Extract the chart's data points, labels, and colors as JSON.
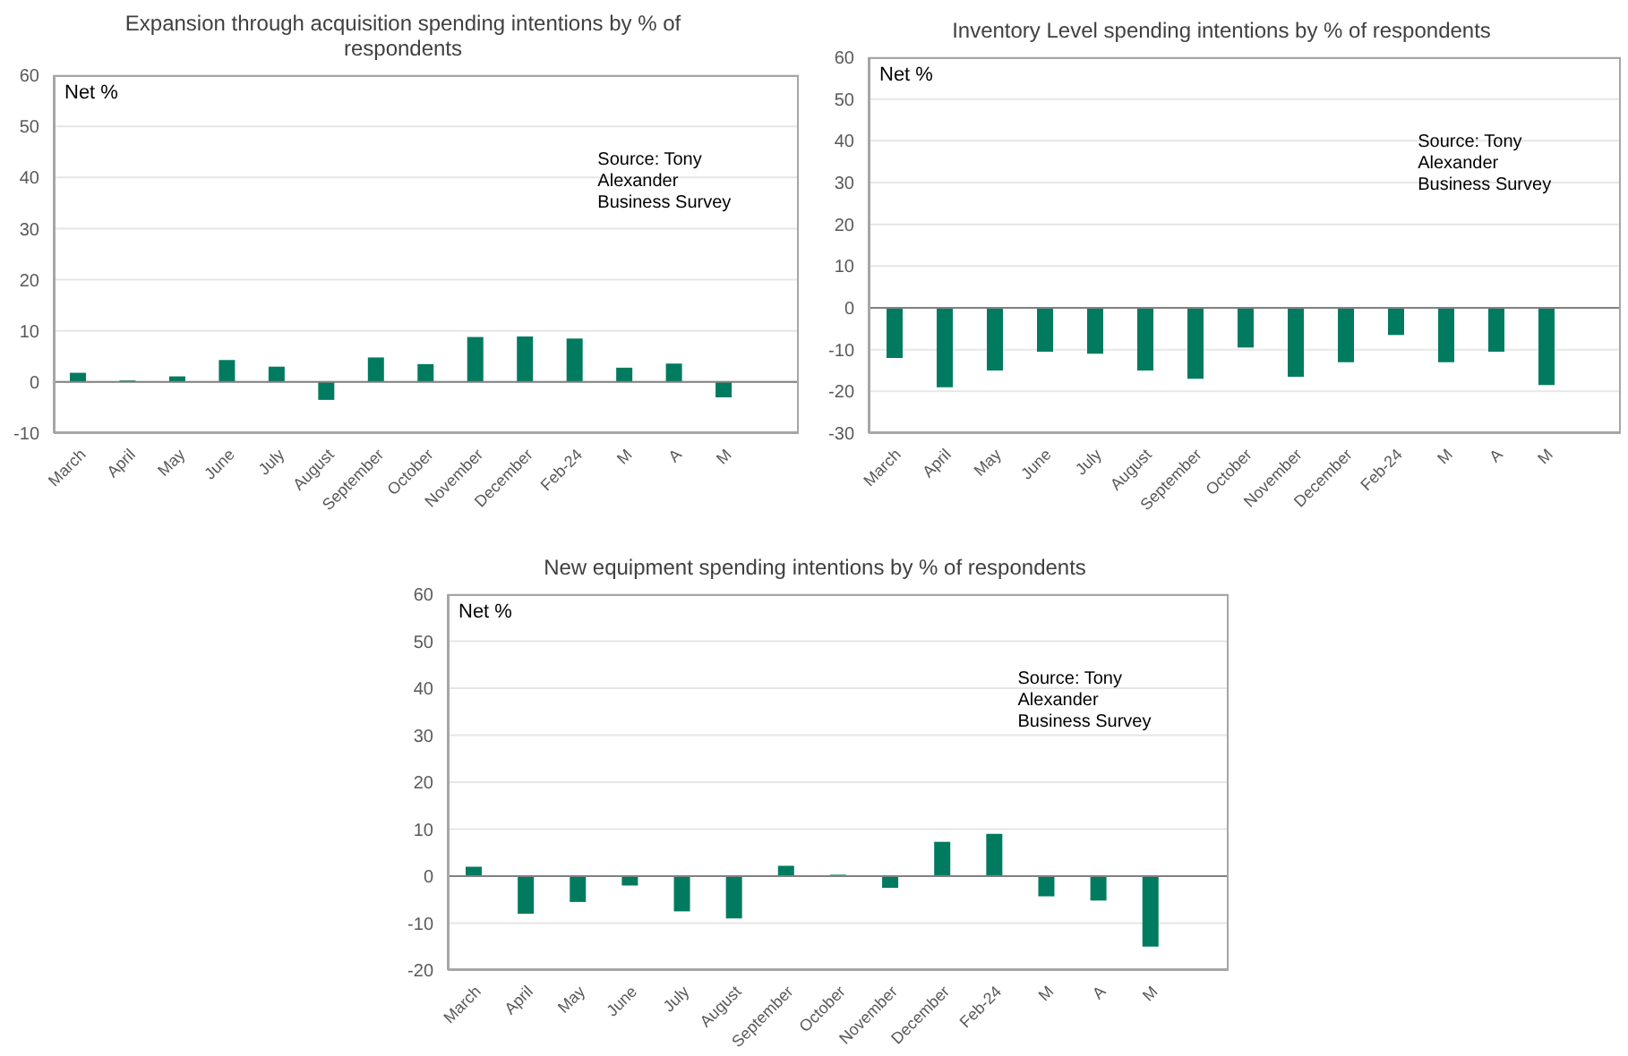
{
  "chart_data": [
    {
      "type": "bar",
      "title": "Expansion through acquisition spending intentions by % of respondents",
      "ylabel": "Net %",
      "annotations": [
        "Source: Tony Alexander Business Survey"
      ],
      "categories": [
        "March",
        "April",
        "May",
        "June",
        "July",
        "August",
        "September",
        "October",
        "November",
        "December",
        "Feb-24",
        "M",
        "A",
        "M",
        null
      ],
      "values": [
        1.8,
        0.3,
        1.1,
        4.3,
        3.0,
        -3.5,
        4.8,
        3.5,
        8.8,
        8.9,
        8.5,
        2.8,
        3.6,
        -3.0,
        null
      ],
      "color": "#007b5f",
      "ylim": [
        -10,
        60
      ],
      "yticks": [
        -10,
        0,
        10,
        20,
        30,
        40,
        50,
        60
      ],
      "grid": "y",
      "ref_lines": [
        {
          "axis": "y",
          "value": 0,
          "color": "#808080"
        }
      ]
    },
    {
      "type": "bar",
      "title": "Inventory Level spending intentions by % of respondents",
      "ylabel": "Net %",
      "annotations": [
        "Source: Tony Alexander Business Survey"
      ],
      "categories": [
        "March",
        "April",
        "May",
        "June",
        "July",
        "August",
        "September",
        "October",
        "November",
        "December",
        "Feb-24",
        "M",
        "A",
        "M",
        null
      ],
      "values": [
        -12,
        -19,
        -15,
        -10.5,
        -11,
        -15,
        -17,
        -9.5,
        -16.5,
        -13,
        -6.5,
        -13,
        -10.5,
        -18.5,
        null
      ],
      "color": "#007b5f",
      "ylim": [
        -30,
        60
      ],
      "yticks": [
        -30,
        -20,
        -10,
        0,
        10,
        20,
        30,
        40,
        50,
        60
      ],
      "grid": "y",
      "ref_lines": [
        {
          "axis": "y",
          "value": 0,
          "color": "#808080"
        }
      ]
    },
    {
      "type": "bar",
      "title": "New equipment spending intentions by % of respondents",
      "ylabel": "Net %",
      "annotations": [
        "Source: Tony Alexander Business Survey"
      ],
      "categories": [
        "March",
        "April",
        "May",
        "June",
        "July",
        "August",
        "September",
        "October",
        "November",
        "December",
        "Feb-24",
        "M",
        "A",
        "M",
        null
      ],
      "values": [
        2,
        -8,
        -5.5,
        -2,
        -7.5,
        -9,
        2.2,
        0.3,
        -2.5,
        7.3,
        9,
        -4.3,
        -5.2,
        -15,
        null
      ],
      "color": "#007b5f",
      "ylim": [
        -20,
        60
      ],
      "yticks": [
        -20,
        -10,
        0,
        10,
        20,
        30,
        40,
        50,
        60
      ],
      "grid": "y",
      "ref_lines": [
        {
          "axis": "y",
          "value": 0,
          "color": "#808080"
        }
      ]
    }
  ]
}
